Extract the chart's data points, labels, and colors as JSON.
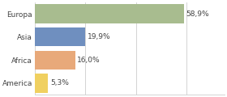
{
  "categories": [
    "Europa",
    "Asia",
    "Africa",
    "America"
  ],
  "values": [
    58.9,
    19.9,
    16.0,
    5.3
  ],
  "labels": [
    "58,9%",
    "19,9%",
    "16,0%",
    "5,3%"
  ],
  "bar_colors": [
    "#a8bc8f",
    "#6f8fbf",
    "#e8a97a",
    "#f0d060"
  ],
  "background_color": "#ffffff",
  "xlim": [
    0,
    75
  ],
  "bar_height": 0.82,
  "label_fontsize": 6.5,
  "ytick_fontsize": 6.5,
  "grid_color": "#cccccc",
  "grid_xticks": [
    0,
    20,
    40,
    60
  ]
}
